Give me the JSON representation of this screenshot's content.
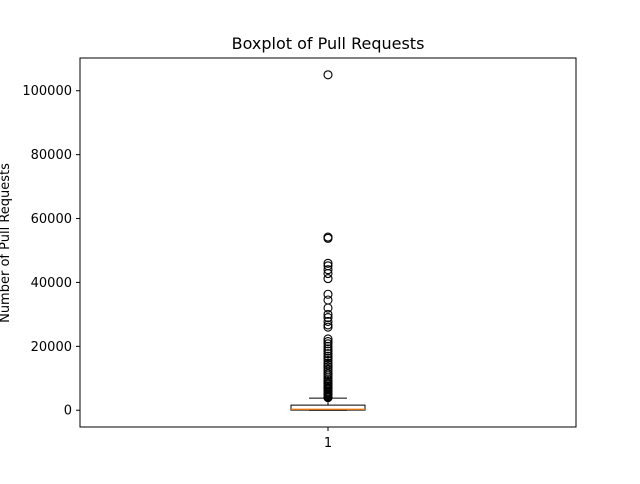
{
  "chart_data": {
    "type": "boxplot",
    "title": "Boxplot of Pull Requests",
    "ylabel": "Number of Pull Requests",
    "xlabel": "",
    "categories": [
      "1"
    ],
    "ylim": [
      -5250,
      110250
    ],
    "yticks": [
      0,
      20000,
      40000,
      60000,
      80000,
      100000
    ],
    "ytick_labels": [
      "0",
      "20000",
      "40000",
      "60000",
      "80000",
      "100000"
    ],
    "grid": false,
    "legend": "none",
    "box": {
      "min": 0,
      "q1": 50,
      "median": 300,
      "q3": 1600,
      "whisker_high": 3800
    },
    "outliers": [
      105000,
      54200,
      53800,
      46000,
      45200,
      44000,
      42800,
      41200,
      36300,
      34500,
      32000,
      30000,
      29000,
      27800,
      26700,
      26000,
      22300,
      21500,
      20800,
      20000,
      19200,
      18500,
      17700,
      16900,
      16300,
      15600,
      14800,
      14200,
      13500,
      12800,
      12200,
      11500,
      11000,
      10400,
      9800,
      9300,
      8800,
      8300,
      7900,
      7500,
      7100,
      6700,
      6300,
      5900,
      5600,
      5300,
      5000,
      4700,
      4400,
      4150,
      3950
    ],
    "colors": {
      "box": "#000000",
      "median": "#ff7f0e",
      "outlier": "#000000",
      "axes": "#000000",
      "background": "#ffffff"
    }
  }
}
